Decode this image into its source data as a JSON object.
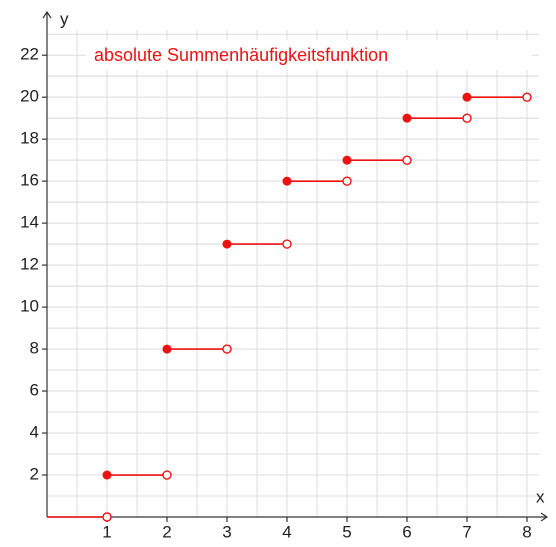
{
  "chart_data": {
    "type": "step",
    "title": "absolute Summenhäufigkeitsfunktion",
    "x_label": "x",
    "y_label": "y",
    "x": [
      0,
      1,
      2,
      3,
      4,
      5,
      6,
      7
    ],
    "x_end": [
      1,
      2,
      3,
      4,
      5,
      6,
      7,
      8
    ],
    "values": [
      0,
      2,
      8,
      13,
      16,
      17,
      19,
      20
    ],
    "color": "#ee1111",
    "xlim": [
      0,
      8.2
    ],
    "ylim": [
      0,
      23.2
    ],
    "xticks": [
      1,
      2,
      3,
      4,
      5,
      6,
      7,
      8
    ],
    "yticks": [
      2,
      4,
      6,
      8,
      10,
      12,
      14,
      16,
      18,
      20,
      22
    ],
    "grid": true
  }
}
